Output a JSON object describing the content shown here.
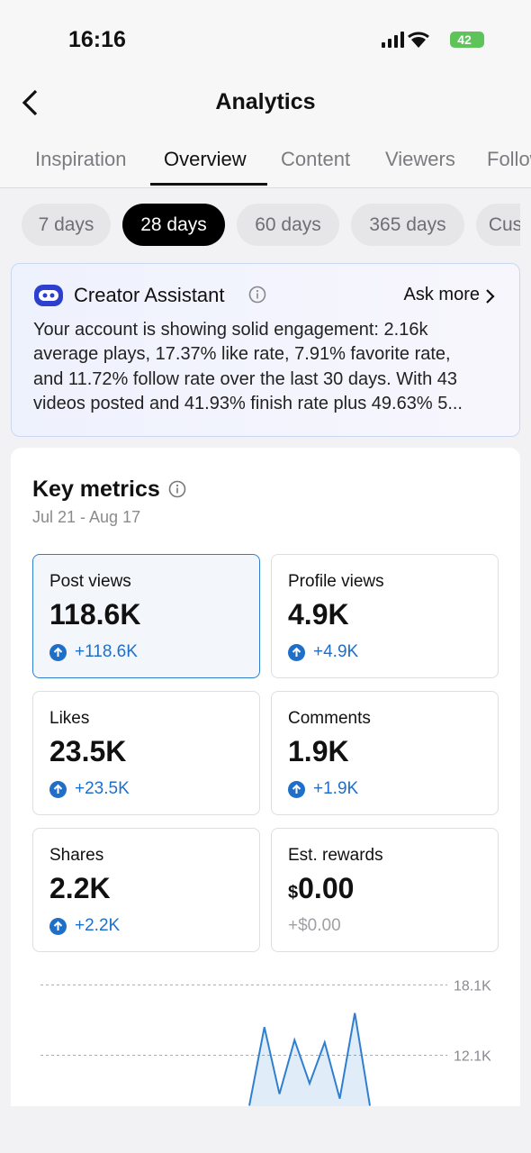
{
  "status": {
    "time": "16:16",
    "battery": "42"
  },
  "header": {
    "title": "Analytics"
  },
  "tabs": [
    "Inspiration",
    "Overview",
    "Content",
    "Viewers",
    "Followers"
  ],
  "periods": [
    "7 days",
    "28 days",
    "60 days",
    "365 days",
    "Custom"
  ],
  "assistant": {
    "title": "Creator Assistant",
    "action": "Ask more",
    "lines": [
      "Your account is showing solid engagement: 2.16k",
      "average plays, 17.37% like rate, 7.91% favorite rate,",
      "and 11.72% follow rate over the last 30 days. With 43",
      "videos posted and 41.93% finish rate plus 49.63% 5..."
    ]
  },
  "metrics": {
    "title": "Key metrics",
    "date_range": "Jul 21 - Aug 17",
    "cards": [
      {
        "label": "Post views",
        "value": "118.6K",
        "change": "+118.6K"
      },
      {
        "label": "Profile views",
        "value": "4.9K",
        "change": "+4.9K"
      },
      {
        "label": "Likes",
        "value": "23.5K",
        "change": "+23.5K"
      },
      {
        "label": "Comments",
        "value": "1.9K",
        "change": "+1.9K"
      },
      {
        "label": "Shares",
        "value": "2.2K",
        "change": "+2.2K"
      },
      {
        "label": "Est. rewards",
        "currency": "$",
        "value": "0.00",
        "change": "+$0.00"
      }
    ]
  },
  "chart_data": {
    "type": "line",
    "color": "#2f7fd0",
    "categories": [
      null,
      null,
      null,
      null,
      null,
      null,
      null,
      null,
      null
    ],
    "values": [
      7800,
      14500,
      8800,
      13400,
      9700,
      13200,
      8400,
      15700,
      7800
    ],
    "ylim": [
      7760,
      19130
    ],
    "yticks": [
      {
        "value": 18100,
        "label": "18.1K"
      },
      {
        "value": 12100,
        "label": "12.1K"
      }
    ],
    "grid": true
  }
}
